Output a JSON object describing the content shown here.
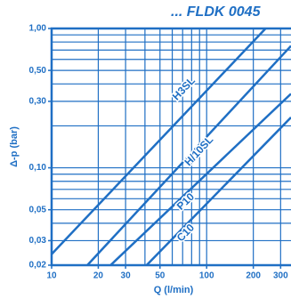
{
  "chart_data": {
    "type": "line",
    "title": "... FLDK 0045",
    "x_label": "Q (l/min)",
    "y_label": "Δ-p (bar)",
    "xscale": "log",
    "yscale": "log",
    "grid": true,
    "color": "#1f6fc4",
    "xlim": [
      10,
      350
    ],
    "ylim": [
      0.02,
      1
    ],
    "xticks": [
      10,
      20,
      30,
      50,
      100,
      200,
      300
    ],
    "yticks": [
      {
        "value": 0.02,
        "label": "0,02"
      },
      {
        "value": 0.03,
        "label": "0,03"
      },
      {
        "value": 0.05,
        "label": "0,05"
      },
      {
        "value": 0.1,
        "label": "0,10"
      },
      {
        "value": 0.3,
        "label": "0,30"
      },
      {
        "value": 0.5,
        "label": "0,50"
      },
      {
        "value": 1,
        "label": "1,00"
      }
    ],
    "xgrid": [
      10,
      20,
      30,
      40,
      50,
      60,
      70,
      80,
      90,
      100,
      200,
      300
    ],
    "ygrid": [
      0.02,
      0.03,
      0.04,
      0.05,
      0.06,
      0.07,
      0.08,
      0.09,
      0.1,
      0.2,
      0.3,
      0.4,
      0.5,
      0.6,
      0.7,
      0.8,
      0.9,
      1
    ],
    "series": [
      {
        "name": "H3SL",
        "x": [
          10,
          240
        ],
        "values": [
          0.024,
          1
        ]
      },
      {
        "name": "H/10SL",
        "x": [
          17,
          350
        ],
        "values": [
          0.02,
          0.75
        ]
      },
      {
        "name": "P10",
        "x": [
          24,
          350
        ],
        "values": [
          0.02,
          0.34
        ]
      },
      {
        "name": "C10",
        "x": [
          41,
          350
        ],
        "values": [
          0.02,
          0.23
        ]
      }
    ]
  }
}
